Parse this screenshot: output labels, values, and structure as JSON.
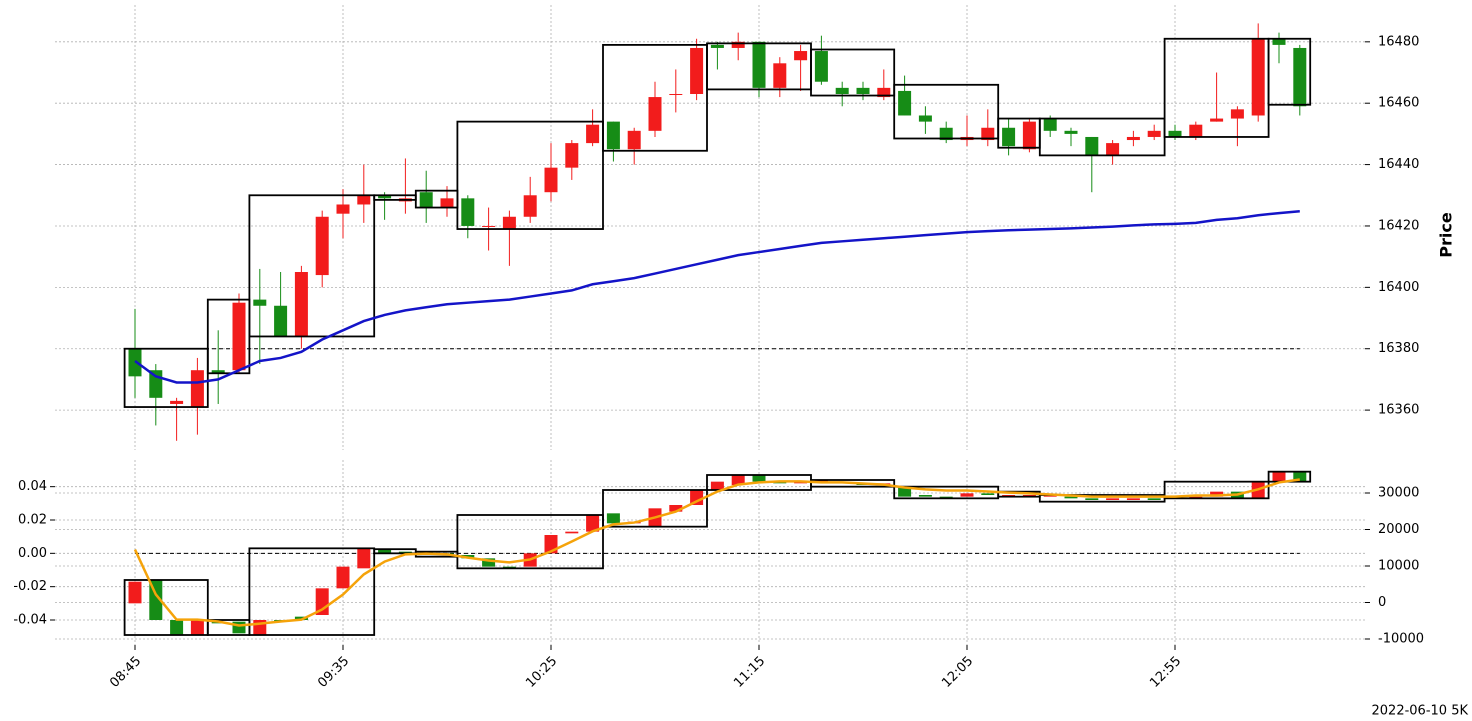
{
  "chart_data": [
    {
      "type": "candlestick",
      "ylabel": "Price",
      "up_color": "#f21c1c",
      "down_color": "#168c16",
      "ylim": [
        16347,
        16492
      ],
      "yticks": [
        16360,
        16380,
        16400,
        16420,
        16440,
        16460,
        16480
      ],
      "grid": true,
      "open": [
        16380,
        16373,
        16362,
        16361,
        16373,
        16373,
        16396,
        16394,
        16384,
        16404,
        16424,
        16427,
        16430,
        16428,
        16431,
        16426,
        16429,
        16420,
        16419,
        16423,
        16431,
        16439,
        16447,
        16454,
        16445,
        16451,
        16463,
        16463,
        16479,
        16478,
        16480,
        16465,
        16474,
        16477,
        16465,
        16465,
        16462,
        16464,
        16456,
        16452,
        16448,
        16448,
        16452,
        16445,
        16455,
        16451,
        16449,
        16443,
        16448,
        16449,
        16451,
        16449,
        16454,
        16455,
        16456,
        16481,
        16478
      ],
      "high": [
        16393,
        16375,
        16364,
        16377,
        16386,
        16398,
        16406,
        16405,
        16407,
        16425,
        16432,
        16440,
        16431,
        16442,
        16438,
        16433,
        16430,
        16426,
        16425,
        16436,
        16447,
        16448,
        16458,
        16454,
        16452,
        16467,
        16471,
        16481,
        16480,
        16483,
        16480,
        16475,
        16479,
        16482,
        16467,
        16467,
        16471,
        16469,
        16459,
        16454,
        16456,
        16458,
        16455,
        16455,
        16456,
        16452,
        16449,
        16448,
        16451,
        16453,
        16453,
        16454,
        16470,
        16459,
        16486,
        16483,
        16479
      ],
      "low": [
        16364,
        16355,
        16350,
        16352,
        16362,
        16372,
        16375,
        16384,
        16380,
        16400,
        16416,
        16421,
        16422,
        16424,
        16421,
        16423,
        16416,
        16412,
        16407,
        16421,
        16428,
        16435,
        16446,
        16441,
        16440,
        16449,
        16457,
        16461,
        16471,
        16474,
        16462,
        16462,
        16464,
        16466,
        16459,
        16461,
        16461,
        16456,
        16450,
        16447,
        16446,
        16446,
        16443,
        16444,
        16449,
        16446,
        16431,
        16440,
        16446,
        16448,
        16448,
        16448,
        16454,
        16446,
        16454,
        16473,
        16456
      ],
      "close": [
        16371,
        16364,
        16363,
        16373,
        16372,
        16395,
        16394,
        16384,
        16405,
        16423,
        16427,
        16430,
        16429,
        16429,
        16426,
        16429,
        16420,
        16420,
        16423,
        16430,
        16439,
        16447,
        16453,
        16445,
        16451,
        16462,
        16463,
        16478,
        16478,
        16480,
        16465,
        16473,
        16477,
        16467,
        16463,
        16463,
        16465,
        16456,
        16454,
        16448,
        16449,
        16452,
        16446,
        16454,
        16451,
        16450,
        16443,
        16447,
        16449,
        16451,
        16449,
        16453,
        16455,
        16458,
        16481,
        16479,
        16459
      ],
      "ma": {
        "color": "#1414c8",
        "values": [
          16376,
          16371,
          16369,
          16369,
          16370,
          16373,
          16376,
          16377,
          16379,
          16383,
          16386,
          16389,
          16391,
          16392.5,
          16393.5,
          16394.5,
          16395,
          16395.5,
          16396,
          16397,
          16398,
          16399,
          16401,
          16402,
          16403,
          16404.5,
          16406,
          16407.5,
          16409,
          16410.5,
          16411.5,
          16412.5,
          16413.5,
          16414.5,
          16415,
          16415.5,
          16416,
          16416.5,
          16417,
          16417.5,
          16418,
          16418.3,
          16418.6,
          16418.8,
          16419,
          16419.2,
          16419.5,
          16419.8,
          16420.2,
          16420.5,
          16420.7,
          16421,
          16422,
          16422.5,
          16423.5,
          16424.2,
          16424.8
        ]
      },
      "reference_line": 16380,
      "boxes": [
        {
          "start": 0,
          "end": 3,
          "top": 16380,
          "bottom": 16361
        },
        {
          "start": 4,
          "end": 5,
          "top": 16396,
          "bottom": 16372
        },
        {
          "start": 6,
          "end": 11,
          "top": 16430,
          "bottom": 16384
        },
        {
          "start": 12,
          "end": 13,
          "top": 16430,
          "bottom": 16428.5
        },
        {
          "start": 14,
          "end": 15,
          "top": 16431.5,
          "bottom": 16426
        },
        {
          "start": 16,
          "end": 22,
          "top": 16454,
          "bottom": 16419
        },
        {
          "start": 23,
          "end": 27,
          "top": 16479,
          "bottom": 16444.5
        },
        {
          "start": 28,
          "end": 32,
          "top": 16479.5,
          "bottom": 16464.5
        },
        {
          "start": 33,
          "end": 36,
          "top": 16477.5,
          "bottom": 16462.5
        },
        {
          "start": 37,
          "end": 41,
          "top": 16466,
          "bottom": 16448.5
        },
        {
          "start": 42,
          "end": 43,
          "top": 16455,
          "bottom": 16445.5
        },
        {
          "start": 44,
          "end": 49,
          "top": 16455,
          "bottom": 16443
        },
        {
          "start": 50,
          "end": 54,
          "top": 16481,
          "bottom": 16449
        },
        {
          "start": 55,
          "end": 56,
          "top": 16481,
          "bottom": 16459.5
        }
      ]
    },
    {
      "type": "candlestick",
      "caption": "2022-06-10 5K",
      "up_color": "#f21c1c",
      "down_color": "#168c16",
      "categories": [
        "08:45",
        null,
        null,
        null,
        null,
        null,
        null,
        null,
        null,
        null,
        "09:35",
        null,
        null,
        null,
        null,
        null,
        null,
        null,
        null,
        null,
        "10:25",
        null,
        null,
        null,
        null,
        null,
        null,
        null,
        null,
        null,
        "11:15",
        null,
        null,
        null,
        null,
        null,
        null,
        null,
        null,
        null,
        "12:05",
        null,
        null,
        null,
        null,
        null,
        null,
        null,
        null,
        null,
        "12:55",
        null,
        null,
        null,
        null,
        null,
        null
      ],
      "ylim": [
        -0.055,
        0.056
      ],
      "yticks": [
        -0.04,
        -0.02,
        {
          "value": 0,
          "label": "0.00"
        },
        0.02,
        0.04
      ],
      "y2lim": [
        -11640,
        39040
      ],
      "y2ticks": [
        -10000,
        0,
        10000,
        20000,
        30000
      ],
      "grid": true,
      "open": [
        -0.03,
        -0.016,
        -0.04,
        -0.049,
        -0.041,
        -0.041,
        -0.049,
        -0.04,
        -0.038,
        -0.037,
        -0.021,
        -0.009,
        0.002,
        0.001,
        0.001,
        0.0,
        -0.001,
        -0.003,
        -0.008,
        -0.008,
        0.0,
        0.012,
        0.013,
        0.024,
        0.018,
        0.016,
        0.025,
        0.029,
        0.038,
        0.041,
        0.047,
        0.043,
        0.042,
        0.043,
        0.043,
        0.042,
        0.041,
        0.04,
        0.035,
        0.034,
        0.034,
        0.036,
        0.034,
        0.034,
        0.034,
        0.034,
        0.033,
        0.032,
        0.032,
        0.033,
        0.034,
        0.033,
        0.034,
        0.037,
        0.033,
        0.043,
        0.049
      ],
      "close": [
        -0.017,
        -0.04,
        -0.049,
        -0.04,
        -0.042,
        -0.048,
        -0.04,
        -0.041,
        -0.04,
        -0.021,
        -0.008,
        0.003,
        0.0,
        0.0,
        0.0,
        -0.001,
        -0.003,
        -0.008,
        -0.009,
        0.0,
        0.011,
        0.013,
        0.023,
        0.018,
        0.019,
        0.027,
        0.029,
        0.038,
        0.043,
        0.047,
        0.043,
        0.042,
        0.043,
        0.044,
        0.042,
        0.041,
        0.042,
        0.034,
        0.034,
        0.033,
        0.036,
        0.035,
        0.035,
        0.035,
        0.035,
        0.033,
        0.032,
        0.033,
        0.033,
        0.032,
        0.033,
        0.034,
        0.037,
        0.033,
        0.043,
        0.049,
        0.043
      ],
      "line": {
        "color": "#f5a30a",
        "axis": "y2",
        "values": [
          14500,
          2200,
          -4700,
          -4700,
          -5200,
          -6300,
          -5800,
          -5200,
          -4700,
          -1900,
          2200,
          7700,
          11200,
          13200,
          13400,
          13200,
          12300,
          11500,
          11000,
          11800,
          14000,
          16700,
          19500,
          21400,
          21900,
          23300,
          24900,
          27700,
          30400,
          32300,
          32900,
          33200,
          33200,
          32900,
          32900,
          32600,
          32300,
          31500,
          31000,
          30700,
          30700,
          30400,
          30100,
          29900,
          29600,
          29300,
          29000,
          29000,
          29000,
          29000,
          29000,
          29300,
          29300,
          29600,
          31000,
          32900,
          33700
        ]
      },
      "reference_line": 0,
      "boxes": [
        {
          "start": 0,
          "end": 3,
          "top": -0.016,
          "bottom": -0.049
        },
        {
          "start": 4,
          "end": 5,
          "top": -0.04,
          "bottom": -0.049
        },
        {
          "start": 6,
          "end": 11,
          "top": 0.003,
          "bottom": -0.049
        },
        {
          "start": 12,
          "end": 13,
          "top": 0.0025,
          "bottom": 0
        },
        {
          "start": 14,
          "end": 15,
          "top": 0.001,
          "bottom": -0.002
        },
        {
          "start": 16,
          "end": 22,
          "top": 0.023,
          "bottom": -0.009
        },
        {
          "start": 23,
          "end": 27,
          "top": 0.038,
          "bottom": 0.016
        },
        {
          "start": 28,
          "end": 32,
          "top": 0.047,
          "bottom": 0.038
        },
        {
          "start": 33,
          "end": 36,
          "top": 0.044,
          "bottom": 0.04
        },
        {
          "start": 37,
          "end": 41,
          "top": 0.04,
          "bottom": 0.033
        },
        {
          "start": 42,
          "end": 43,
          "top": 0.037,
          "bottom": 0.034
        },
        {
          "start": 44,
          "end": 49,
          "top": 0.035,
          "bottom": 0.031
        },
        {
          "start": 50,
          "end": 54,
          "top": 0.043,
          "bottom": 0.033
        },
        {
          "start": 55,
          "end": 56,
          "top": 0.049,
          "bottom": 0.043
        }
      ]
    }
  ]
}
